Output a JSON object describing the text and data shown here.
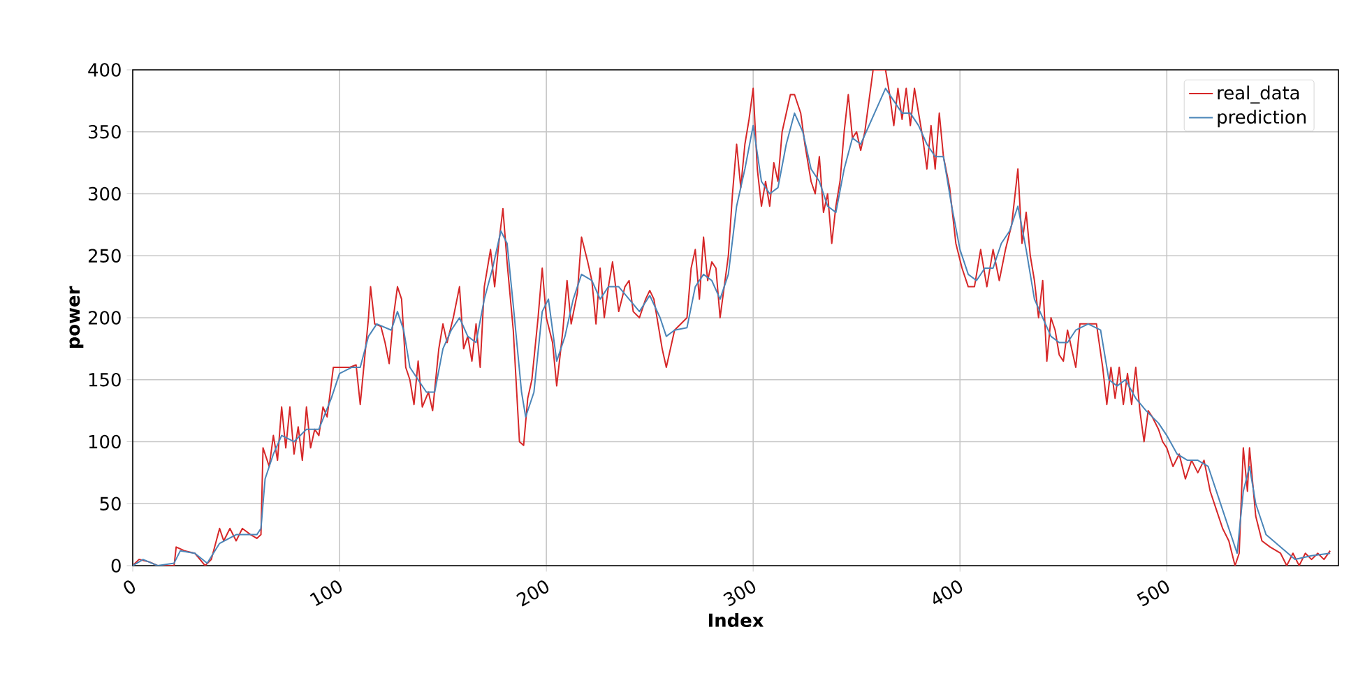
{
  "chart_data": {
    "type": "line",
    "xlabel": "Index",
    "ylabel": "power",
    "xlim": [
      0,
      583
    ],
    "ylim": [
      0,
      400
    ],
    "xticks": [
      0,
      100,
      200,
      300,
      400,
      500
    ],
    "yticks": [
      0,
      50,
      100,
      150,
      200,
      250,
      300,
      350,
      400
    ],
    "grid": true,
    "legend": "top right",
    "line_style": "solid",
    "series": [
      {
        "name": "real_data",
        "color": "#d62728",
        "x": [
          0,
          3,
          8,
          12,
          20,
          21,
          25,
          30,
          35,
          38,
          42,
          44,
          47,
          50,
          53,
          57,
          60,
          62,
          63,
          66,
          68,
          70,
          72,
          74,
          76,
          78,
          80,
          82,
          84,
          86,
          88,
          90,
          92,
          94,
          97,
          105,
          108,
          110,
          112,
          114,
          115,
          117,
          120,
          122,
          124,
          126,
          128,
          130,
          132,
          134,
          136,
          138,
          140,
          143,
          145,
          148,
          150,
          152,
          155,
          158,
          160,
          162,
          164,
          166,
          168,
          170,
          173,
          175,
          177,
          179,
          181,
          184,
          187,
          189,
          191,
          193,
          196,
          198,
          200,
          203,
          205,
          208,
          210,
          212,
          215,
          217,
          220,
          222,
          224,
          226,
          228,
          230,
          232,
          235,
          238,
          240,
          242,
          245,
          248,
          250,
          252,
          254,
          256,
          258,
          262,
          265,
          268,
          270,
          272,
          274,
          276,
          278,
          280,
          282,
          284,
          286,
          288,
          290,
          292,
          294,
          296,
          298,
          300,
          302,
          304,
          306,
          308,
          310,
          312,
          314,
          316,
          318,
          320,
          323,
          325,
          328,
          330,
          332,
          334,
          336,
          338,
          340,
          342,
          344,
          346,
          348,
          350,
          352,
          354,
          356,
          358,
          364,
          366,
          368,
          370,
          372,
          374,
          376,
          378,
          380,
          382,
          384,
          386,
          388,
          390,
          392,
          395,
          398,
          401,
          404,
          407,
          410,
          413,
          416,
          419,
          422,
          425,
          428,
          430,
          432,
          434,
          436,
          438,
          440,
          442,
          444,
          446,
          448,
          450,
          452,
          454,
          456,
          458,
          462,
          466,
          469,
          471,
          473,
          475,
          477,
          479,
          481,
          483,
          485,
          487,
          489,
          491,
          493,
          496,
          498,
          500,
          503,
          506,
          509,
          512,
          515,
          518,
          521,
          524,
          527,
          530,
          533,
          535,
          537,
          539,
          540,
          543,
          546,
          550,
          555,
          558,
          561,
          564,
          567,
          570,
          573,
          576,
          579
        ],
        "values": [
          0,
          5,
          3,
          0,
          0,
          15,
          12,
          10,
          0,
          5,
          30,
          20,
          30,
          20,
          30,
          25,
          22,
          25,
          95,
          80,
          105,
          85,
          128,
          95,
          128,
          90,
          112,
          85,
          128,
          95,
          110,
          105,
          128,
          120,
          160,
          160,
          162,
          130,
          165,
          200,
          225,
          195,
          193,
          180,
          163,
          200,
          225,
          215,
          160,
          150,
          130,
          165,
          128,
          140,
          125,
          175,
          195,
          180,
          200,
          225,
          175,
          185,
          165,
          195,
          160,
          225,
          255,
          225,
          260,
          288,
          245,
          190,
          100,
          97,
          135,
          150,
          200,
          240,
          200,
          180,
          145,
          190,
          230,
          195,
          220,
          265,
          245,
          230,
          195,
          240,
          200,
          225,
          245,
          205,
          225,
          230,
          205,
          200,
          215,
          222,
          215,
          195,
          175,
          160,
          190,
          195,
          200,
          240,
          255,
          215,
          265,
          230,
          245,
          240,
          200,
          225,
          250,
          300,
          340,
          305,
          340,
          360,
          385,
          320,
          290,
          310,
          290,
          325,
          310,
          350,
          365,
          380,
          380,
          365,
          340,
          310,
          300,
          330,
          285,
          300,
          260,
          290,
          310,
          350,
          380,
          345,
          350,
          335,
          350,
          375,
          400,
          400,
          380,
          355,
          385,
          360,
          385,
          355,
          385,
          365,
          345,
          320,
          355,
          320,
          365,
          330,
          305,
          260,
          240,
          225,
          225,
          255,
          225,
          255,
          230,
          255,
          275,
          320,
          260,
          285,
          250,
          230,
          200,
          230,
          165,
          200,
          190,
          170,
          165,
          190,
          175,
          160,
          195,
          195,
          195,
          160,
          130,
          160,
          135,
          160,
          130,
          155,
          130,
          160,
          125,
          100,
          125,
          120,
          110,
          100,
          95,
          80,
          90,
          70,
          85,
          75,
          85,
          60,
          45,
          30,
          20,
          0,
          10,
          95,
          60,
          95,
          40,
          20,
          15,
          10,
          0,
          10,
          0,
          10,
          5,
          10,
          5,
          12
        ]
      },
      {
        "name": "prediction",
        "color": "#4a85b8",
        "x": [
          0,
          5,
          12,
          20,
          23,
          30,
          36,
          42,
          50,
          60,
          62,
          64,
          68,
          72,
          78,
          84,
          90,
          96,
          100,
          106,
          110,
          114,
          118,
          125,
          128,
          131,
          134,
          138,
          142,
          146,
          150,
          154,
          158,
          162,
          166,
          170,
          174,
          178,
          181,
          184,
          188,
          190,
          194,
          198,
          201,
          205,
          209,
          213,
          217,
          222,
          226,
          230,
          235,
          240,
          245,
          250,
          255,
          258,
          262,
          268,
          272,
          276,
          280,
          284,
          288,
          292,
          296,
          300,
          304,
          308,
          312,
          316,
          320,
          324,
          328,
          332,
          336,
          340,
          344,
          348,
          352,
          356,
          360,
          364,
          368,
          372,
          376,
          380,
          384,
          388,
          392,
          396,
          400,
          404,
          408,
          412,
          416,
          420,
          424,
          428,
          432,
          436,
          440,
          444,
          448,
          452,
          456,
          462,
          468,
          472,
          476,
          480,
          485,
          490,
          496,
          500,
          505,
          510,
          515,
          520,
          525,
          530,
          534,
          537,
          540,
          543,
          548,
          555,
          562,
          570,
          579
        ],
        "values": [
          0,
          5,
          0,
          2,
          12,
          10,
          2,
          18,
          25,
          25,
          30,
          70,
          90,
          105,
          100,
          110,
          110,
          135,
          155,
          160,
          160,
          185,
          195,
          190,
          205,
          190,
          160,
          150,
          140,
          140,
          175,
          190,
          200,
          185,
          180,
          215,
          240,
          270,
          260,
          210,
          140,
          120,
          140,
          205,
          215,
          165,
          185,
          215,
          235,
          230,
          215,
          225,
          225,
          215,
          205,
          218,
          200,
          185,
          190,
          192,
          225,
          235,
          230,
          215,
          235,
          290,
          320,
          355,
          310,
          300,
          305,
          340,
          365,
          350,
          320,
          310,
          290,
          285,
          320,
          345,
          340,
          355,
          370,
          385,
          375,
          365,
          365,
          355,
          340,
          330,
          330,
          290,
          255,
          235,
          230,
          240,
          240,
          260,
          270,
          290,
          255,
          215,
          200,
          185,
          180,
          180,
          190,
          195,
          190,
          150,
          145,
          150,
          135,
          125,
          115,
          105,
          90,
          85,
          85,
          80,
          55,
          30,
          10,
          60,
          80,
          50,
          25,
          15,
          5,
          8,
          10
        ]
      }
    ]
  }
}
